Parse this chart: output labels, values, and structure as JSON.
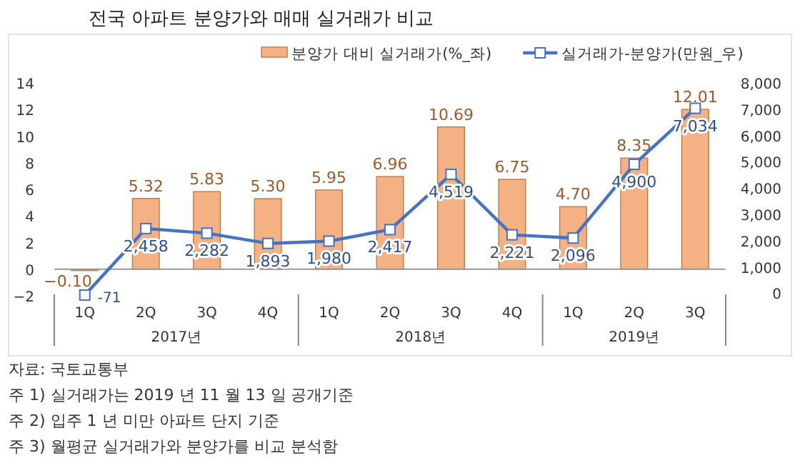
{
  "chart_data": {
    "type": "bar",
    "title": "전국 아파트 분양가와 매매 실거래가 비교",
    "categories": [
      "1Q",
      "2Q",
      "3Q",
      "4Q",
      "1Q",
      "2Q",
      "3Q",
      "4Q",
      "1Q",
      "2Q",
      "3Q"
    ],
    "series": [
      {
        "name": "분양가 대비 실거래가(%_좌)",
        "color": "#f4b183",
        "values": [
          -0.1,
          5.32,
          5.83,
          5.3,
          5.95,
          6.96,
          10.69,
          6.75,
          4.7,
          8.35,
          12.01
        ],
        "value_labels": [
          "−0.10",
          "5.32",
          "5.83",
          "5.30",
          "5.95",
          "6.96",
          "10.69",
          "6.75",
          "4.70",
          "8.35",
          "12.01"
        ]
      },
      {
        "name": "실거래가-분양가(만원_우)",
        "type": "line",
        "axis": "y2",
        "color": "#4472c4",
        "marker": "square",
        "values": [
          -71,
          2458,
          2282,
          1893,
          1980,
          2417,
          4519,
          2221,
          2096,
          4900,
          7034
        ],
        "value_labels": [
          "-71",
          "2,458",
          "2,282",
          "1,893",
          "1,980",
          "2,417",
          "4,519",
          "2,221",
          "2,096",
          "4,900",
          "7,034"
        ]
      }
    ],
    "ylim": [
      -2,
      14
    ],
    "yticks": [
      {
        "value": -2,
        "label": "−2"
      },
      0,
      2,
      4,
      6,
      8,
      10,
      12,
      14
    ],
    "y2lim": [
      -100,
      8000
    ],
    "y2ticks": [
      0,
      {
        "value": 1000,
        "label": "1,000"
      },
      {
        "value": 2000,
        "label": "2,000"
      },
      {
        "value": 3000,
        "label": "3,000"
      },
      {
        "value": 4000,
        "label": "4,000"
      },
      {
        "value": 5000,
        "label": "5,000"
      },
      {
        "value": 6000,
        "label": "6,000"
      },
      {
        "value": 7000,
        "label": "7,000"
      },
      {
        "value": 8000,
        "label": "8,000"
      }
    ],
    "grid": false,
    "legend": "top",
    "annotations": [
      "2017년",
      "2018년",
      "2019년",
      "자료: 국토교통부",
      "주 1) 실거래가는 2019 년 11 월 13 일 공개기준",
      "주 2) 입주 1 년 미만 아파트 단지 기준",
      "주 3) 월평균 실거래가와 분양가를 비교 분석함"
    ]
  }
}
